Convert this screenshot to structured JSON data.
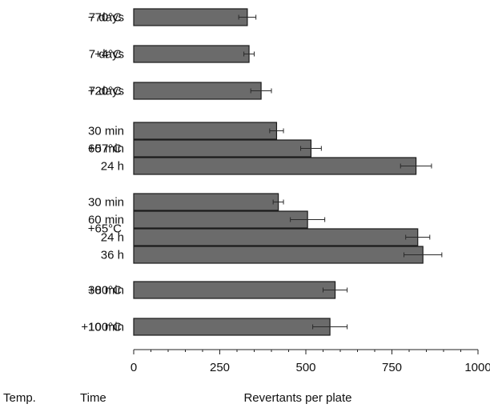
{
  "chart_data": {
    "type": "bar",
    "orientation": "horizontal",
    "title": "",
    "xlabel": "Revertants per plate",
    "row_headers": {
      "temp": "Temp.",
      "time": "Time"
    },
    "xlim": [
      0,
      1000
    ],
    "xticks": [
      0,
      250,
      500,
      750,
      1000
    ],
    "grid": false,
    "groups": [
      {
        "temp": "−70°C",
        "bars": [
          {
            "time": "7 days",
            "value": 330,
            "error": 25
          }
        ]
      },
      {
        "temp": "+4°C",
        "bars": [
          {
            "time": "7 days",
            "value": 335,
            "error": 15
          }
        ]
      },
      {
        "temp": "+20°C",
        "bars": [
          {
            "time": "7 days",
            "value": 370,
            "error": 30
          }
        ]
      },
      {
        "temp": "+57°C",
        "bars": [
          {
            "time": "30 min",
            "value": 415,
            "error": 20
          },
          {
            "time": "60 min",
            "value": 515,
            "error": 30
          },
          {
            "time": "24 h",
            "value": 820,
            "error": 45
          }
        ]
      },
      {
        "temp": "+65°C",
        "bars": [
          {
            "time": "30 min",
            "value": 420,
            "error": 15
          },
          {
            "time": "60 min",
            "value": 505,
            "error": 50
          },
          {
            "time": "24 h",
            "value": 825,
            "error": 35
          },
          {
            "time": "36 h",
            "value": 840,
            "error": 55
          }
        ]
      },
      {
        "temp": "+80°C",
        "bars": [
          {
            "time": "30 min",
            "value": 585,
            "error": 35
          }
        ]
      },
      {
        "temp": "+100°C",
        "bars": [
          {
            "time": "10 min",
            "value": 570,
            "error": 50
          }
        ]
      }
    ]
  }
}
